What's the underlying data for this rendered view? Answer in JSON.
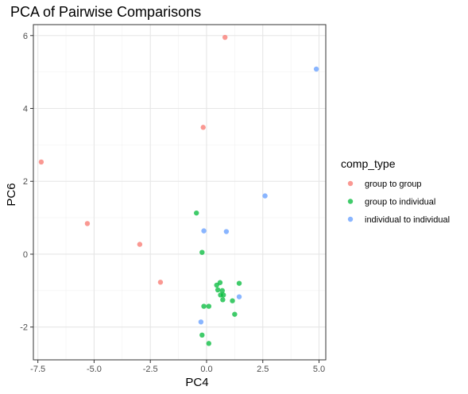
{
  "chart_data": {
    "type": "scatter",
    "title": "PCA of Pairwise Comparisons",
    "xlabel": "PC4",
    "ylabel": "PC6",
    "xlim": [
      -7.7,
      5.3
    ],
    "ylim": [
      -2.9,
      6.3
    ],
    "x_ticks": [
      -7.5,
      -5.0,
      -2.5,
      0.0,
      2.5,
      5.0
    ],
    "x_tick_labels": [
      "-7.5",
      "-5.0",
      "-2.5",
      "0.0",
      "2.5",
      "5.0"
    ],
    "y_ticks": [
      -2,
      0,
      2,
      4,
      6
    ],
    "y_tick_labels": [
      "-2",
      "0",
      "2",
      "4",
      "6"
    ],
    "grid": true,
    "legend": {
      "title": "comp_type",
      "position": "right"
    },
    "series": [
      {
        "name": "group to group",
        "color": "#F8766D",
        "points": [
          [
            0.82,
            5.95
          ],
          [
            -0.15,
            3.48
          ],
          [
            -7.35,
            2.53
          ],
          [
            -5.3,
            0.84
          ],
          [
            -2.97,
            0.27
          ],
          [
            -2.05,
            -0.77
          ]
        ]
      },
      {
        "name": "group to individual",
        "color": "#00BA38",
        "points": [
          [
            -0.45,
            1.13
          ],
          [
            -0.2,
            0.05
          ],
          [
            0.45,
            -0.85
          ],
          [
            0.6,
            -0.78
          ],
          [
            0.5,
            -0.98
          ],
          [
            0.7,
            -1.0
          ],
          [
            0.75,
            -1.12
          ],
          [
            0.62,
            -1.12
          ],
          [
            0.72,
            -1.25
          ],
          [
            1.45,
            -0.8
          ],
          [
            1.15,
            -1.28
          ],
          [
            0.1,
            -1.43
          ],
          [
            -0.12,
            -1.43
          ],
          [
            1.25,
            -1.65
          ],
          [
            -0.2,
            -2.22
          ],
          [
            0.1,
            -2.45
          ]
        ]
      },
      {
        "name": "individual to individual",
        "color": "#619CFF",
        "points": [
          [
            4.88,
            5.08
          ],
          [
            2.6,
            1.6
          ],
          [
            -0.12,
            0.64
          ],
          [
            0.88,
            0.62
          ],
          [
            1.45,
            -1.17
          ],
          [
            -0.25,
            -1.86
          ]
        ]
      }
    ]
  }
}
